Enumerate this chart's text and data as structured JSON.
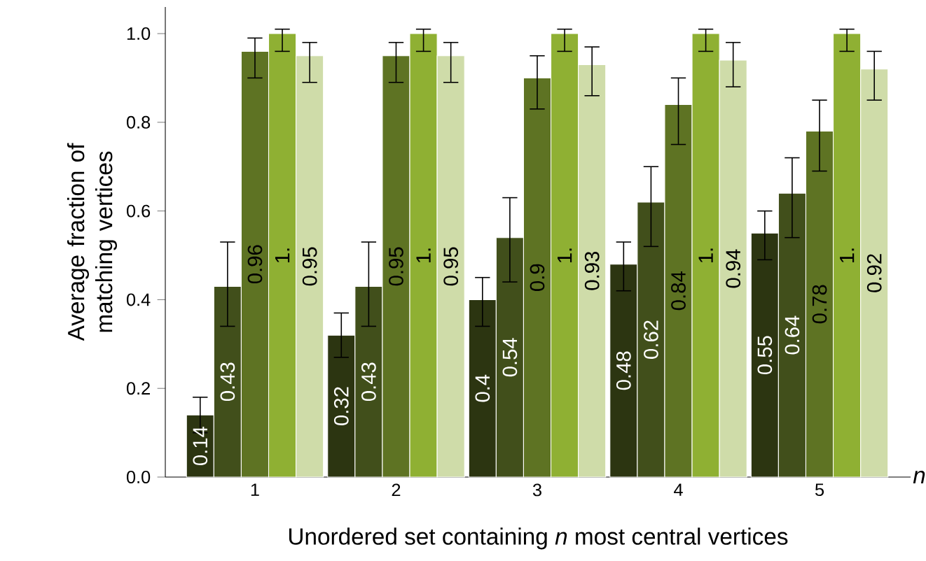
{
  "chart_data": {
    "type": "bar",
    "xlabel": "Unordered set containing *n* most central vertices",
    "ylabel": "Average fraction of matching vertices",
    "annotations": [
      "*n*"
    ],
    "categories": [
      "1",
      "2",
      "3",
      "4",
      "5"
    ],
    "ylim": [
      0,
      1.06
    ],
    "yticks": [
      {
        "value": 0,
        "label": "0.0"
      },
      {
        "value": 0.2,
        "label": "0.2"
      },
      {
        "value": 0.4,
        "label": "0.4"
      },
      {
        "value": 0.6,
        "label": "0.6"
      },
      {
        "value": 0.8,
        "label": "0.8"
      },
      {
        "value": 1.0,
        "label": "1.0"
      }
    ],
    "series": [
      {
        "color": "#2c3511",
        "values": [
          0.14,
          0.32,
          0.4,
          0.48,
          0.55
        ],
        "value_labels": [
          "0.14",
          "0.32",
          "0.4",
          "0.48",
          "0.55"
        ],
        "errors": [
          [
            0.1,
            0.18
          ],
          [
            0.27,
            0.37
          ],
          [
            0.34,
            0.45
          ],
          [
            0.42,
            0.53
          ],
          [
            0.49,
            0.6
          ]
        ]
      },
      {
        "color": "#414f1b",
        "values": [
          0.43,
          0.43,
          0.54,
          0.62,
          0.64
        ],
        "value_labels": [
          "0.43",
          "0.43",
          "0.54",
          "0.62",
          "0.64"
        ],
        "errors": [
          [
            0.34,
            0.53
          ],
          [
            0.34,
            0.53
          ],
          [
            0.44,
            0.63
          ],
          [
            0.52,
            0.7
          ],
          [
            0.54,
            0.72
          ]
        ]
      },
      {
        "color": "#5e7323",
        "values": [
          0.96,
          0.95,
          0.9,
          0.84,
          0.78
        ],
        "value_labels": [
          "0.96",
          "0.95",
          "0.9",
          "0.84",
          "0.78"
        ],
        "errors": [
          [
            0.9,
            0.99
          ],
          [
            0.89,
            0.98
          ],
          [
            0.83,
            0.95
          ],
          [
            0.75,
            0.9
          ],
          [
            0.69,
            0.85
          ]
        ]
      },
      {
        "color": "#8fb033",
        "values": [
          1.0,
          1.0,
          1.0,
          1.0,
          1.0
        ],
        "value_labels": [
          "1.",
          "1.",
          "1.",
          "1.",
          "1."
        ],
        "errors": [
          [
            0.96,
            1.01
          ],
          [
            0.96,
            1.01
          ],
          [
            0.96,
            1.01
          ],
          [
            0.96,
            1.01
          ],
          [
            0.96,
            1.01
          ]
        ]
      },
      {
        "color": "#cfdca9",
        "values": [
          0.95,
          0.95,
          0.93,
          0.94,
          0.92
        ],
        "value_labels": [
          "0.95",
          "0.95",
          "0.93",
          "0.94",
          "0.92"
        ],
        "errors": [
          [
            0.89,
            0.98
          ],
          [
            0.89,
            0.98
          ],
          [
            0.86,
            0.97
          ],
          [
            0.88,
            0.98
          ],
          [
            0.85,
            0.96
          ]
        ]
      }
    ]
  }
}
